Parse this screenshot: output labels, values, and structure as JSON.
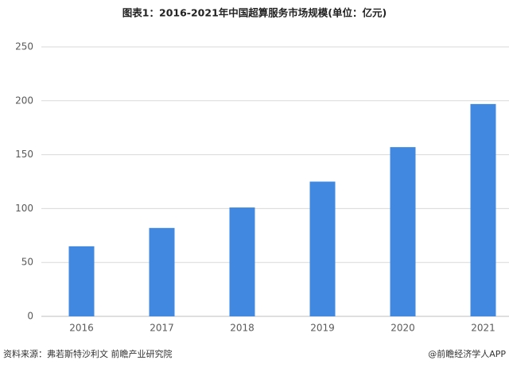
{
  "chart_data": {
    "type": "bar",
    "title": "图表1：2016-2021年中国超算服务市场规模(单位：亿元)",
    "categories": [
      "2016",
      "2017",
      "2018",
      "2019",
      "2020",
      "2021"
    ],
    "values": [
      65,
      82,
      101,
      125,
      157,
      197
    ],
    "color": "#4189e0",
    "ylim": [
      0,
      250
    ],
    "yticks": [
      0,
      50,
      100,
      150,
      200,
      250
    ],
    "grid": true
  },
  "footer": {
    "source": "资料来源：弗若斯特沙利文 前瞻产业研究院",
    "credit": "@前瞻经济学人APP"
  }
}
